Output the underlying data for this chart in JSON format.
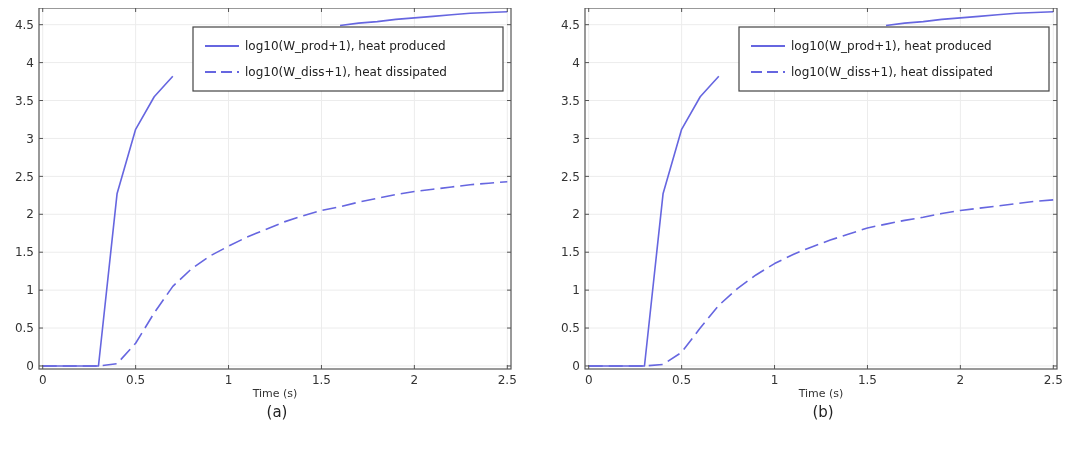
{
  "chart_data": [
    {
      "type": "line",
      "title": "(a)",
      "xlabel": "Time (s)",
      "xlim": [
        -0.02,
        2.52
      ],
      "ylim": [
        -0.04,
        4.72
      ],
      "xticks": [
        0,
        0.5,
        1,
        1.5,
        2,
        2.5
      ],
      "yticks": [
        0,
        0.5,
        1,
        1.5,
        2,
        2.5,
        3,
        3.5,
        4,
        4.5
      ],
      "grid": true,
      "legend": "top right",
      "x": [
        0,
        0.1,
        0.2,
        0.3,
        0.4,
        0.5,
        0.6,
        0.7,
        0.8,
        0.9,
        1.0,
        1.1,
        1.2,
        1.3,
        1.4,
        1.5,
        1.6,
        1.7,
        1.8,
        1.9,
        2.0,
        2.1,
        2.2,
        2.3,
        2.4,
        2.5
      ],
      "series": [
        {
          "name": "log10(W_prod+1), heat produced",
          "color": "#6666e0",
          "line_style": "solid",
          "values": [
            0,
            0,
            0,
            0,
            2.27,
            3.12,
            3.55,
            3.82,
            null,
            null,
            null,
            null,
            null,
            null,
            null,
            null,
            4.49,
            4.52,
            4.54,
            4.57,
            4.59,
            4.61,
            4.63,
            4.65,
            4.66,
            4.67
          ]
        },
        {
          "name": "log10(W_diss+1), heat dissipated",
          "color": "#6666e0",
          "line_style": "dashed",
          "values": [
            0,
            0,
            0,
            0,
            0.03,
            0.3,
            0.7,
            1.05,
            1.28,
            1.45,
            1.58,
            1.7,
            1.8,
            1.9,
            1.98,
            2.05,
            2.1,
            2.16,
            2.21,
            2.26,
            2.3,
            2.33,
            2.36,
            2.39,
            2.41,
            2.43
          ]
        }
      ]
    },
    {
      "type": "line",
      "title": "(b)",
      "xlabel": "Time (s)",
      "xlim": [
        -0.02,
        2.52
      ],
      "ylim": [
        -0.04,
        4.72
      ],
      "xticks": [
        0,
        0.5,
        1,
        1.5,
        2,
        2.5
      ],
      "yticks": [
        0,
        0.5,
        1,
        1.5,
        2,
        2.5,
        3,
        3.5,
        4,
        4.5
      ],
      "grid": true,
      "legend": "top right",
      "x": [
        0,
        0.1,
        0.2,
        0.3,
        0.4,
        0.5,
        0.6,
        0.7,
        0.8,
        0.9,
        1.0,
        1.1,
        1.2,
        1.3,
        1.4,
        1.5,
        1.6,
        1.7,
        1.8,
        1.9,
        2.0,
        2.1,
        2.2,
        2.3,
        2.4,
        2.5
      ],
      "series": [
        {
          "name": "log10(W_prod+1), heat produced",
          "color": "#6666e0",
          "line_style": "solid",
          "values": [
            0,
            0,
            0,
            0,
            2.27,
            3.12,
            3.55,
            3.82,
            null,
            null,
            null,
            null,
            null,
            null,
            null,
            null,
            4.49,
            4.52,
            4.54,
            4.57,
            4.59,
            4.61,
            4.63,
            4.65,
            4.66,
            4.67
          ]
        },
        {
          "name": "log10(W_diss+1), heat dissipated",
          "color": "#6666e0",
          "line_style": "dashed",
          "values": [
            0,
            0,
            0,
            0,
            0.02,
            0.18,
            0.5,
            0.8,
            1.02,
            1.2,
            1.35,
            1.47,
            1.57,
            1.66,
            1.74,
            1.82,
            1.87,
            1.92,
            1.96,
            2.01,
            2.05,
            2.08,
            2.11,
            2.14,
            2.17,
            2.19
          ]
        }
      ]
    }
  ]
}
